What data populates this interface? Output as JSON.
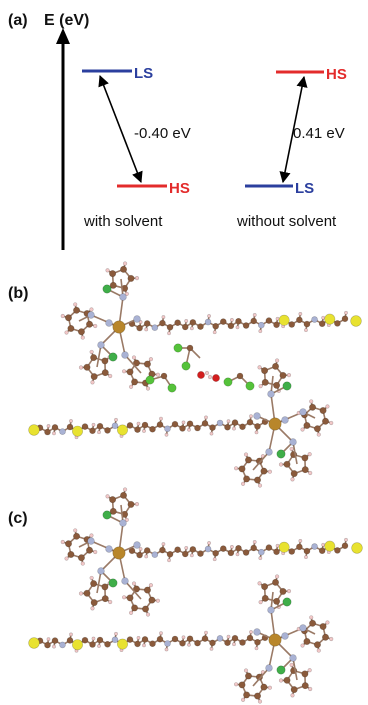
{
  "panel_a": {
    "label": "(a)",
    "axis_label": "E (eV)",
    "with_solvent": {
      "upper_state": "LS",
      "lower_state": "HS",
      "energy_diff": "-0.40 eV",
      "caption": "with solvent"
    },
    "without_solvent": {
      "upper_state": "HS",
      "lower_state": "LS",
      "energy_diff": "0.41 eV",
      "caption": "without solvent"
    }
  },
  "panel_b": {
    "label": "(b)"
  },
  "panel_c": {
    "label": "(c)"
  },
  "colors": {
    "ls": "#2b3f9e",
    "hs": "#e32b2b",
    "carbon": "#8a5a3b",
    "nitrogen": "#a9b2d4",
    "hydrogen": "#f2c8c8",
    "sulfur": "#e8e230",
    "iron": "#b8862b",
    "boron": "#3fae49",
    "chlorine": "#55c23a",
    "oxygen": "#d21e1e"
  }
}
